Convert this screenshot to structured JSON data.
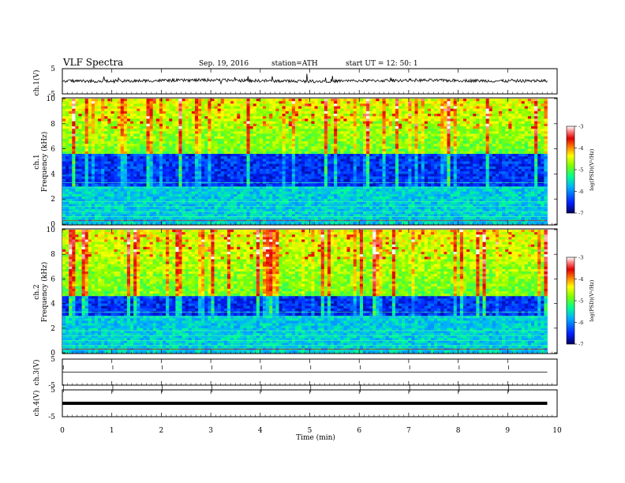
{
  "header": {
    "title": "VLF  Spectra",
    "date": "Sep. 19, 2016",
    "station": "station=ATH",
    "start": "start  UT  =    12: 50: 1"
  },
  "colorbar": {
    "label": "log(PSD)(V²/Hz)",
    "ticks": [
      "-3",
      "-4",
      "-5",
      "-6",
      "-7"
    ],
    "colors": [
      "#ffffff",
      "#ff7070",
      "#e00000",
      "#ff8000",
      "#ffff00",
      "#7fff00",
      "#00ff7f",
      "#00b0ff",
      "#0030ff",
      "#000060"
    ]
  },
  "chart_data": [
    {
      "type": "line",
      "panel": "ch1-waveform",
      "ylabel": "ch.1(V)",
      "ylim": [
        -5,
        5
      ],
      "ytick_labels": [
        "5",
        "-5"
      ],
      "description": "noisy waveform around ~0 V with spikes",
      "x": [
        0,
        1,
        2,
        3,
        4,
        5,
        6,
        7,
        8,
        9,
        9.8
      ],
      "values": [
        0.2,
        0.0,
        0.3,
        0.5,
        0.2,
        0.0,
        0.2,
        0.4,
        0.3,
        0.1,
        0.2
      ]
    },
    {
      "type": "heatmap",
      "panel": "ch1-spectrogram",
      "ylabel": "ch.1\nFrequency (kHz)",
      "ylim": [
        0,
        10
      ],
      "ytick_labels": [
        "0",
        "2",
        "4",
        "6",
        "8",
        "10"
      ],
      "color_scale": [
        -7,
        -3
      ],
      "bands_khz_quiet": [
        3,
        5.5
      ],
      "bands_khz_active": [
        6,
        10
      ]
    },
    {
      "type": "heatmap",
      "panel": "ch2-spectrogram",
      "ylabel": "ch.2\nFrequency (kHz)",
      "ylim": [
        0,
        10
      ],
      "ytick_labels": [
        "0",
        "2",
        "4",
        "6",
        "8",
        "10"
      ],
      "color_scale": [
        -7,
        -3
      ],
      "bands_khz_quiet": [
        3,
        4.5
      ],
      "bands_khz_active": [
        5,
        10
      ]
    },
    {
      "type": "line",
      "panel": "ch3-waveform",
      "ylabel": "ch.3(V)",
      "ylim": [
        -5,
        5
      ],
      "ytick_labels": [
        "5",
        "-5"
      ],
      "x": [
        0,
        9.8
      ],
      "values": [
        0,
        0
      ]
    },
    {
      "type": "line",
      "panel": "ch4-waveform",
      "ylabel": "ch.4(V)",
      "ylim": [
        -5,
        5
      ],
      "ytick_labels": [
        "5",
        "-5"
      ],
      "x": [
        0,
        9.8
      ],
      "values": [
        0,
        0
      ]
    }
  ],
  "xaxis": {
    "label": "Time  (min)",
    "ticks": [
      "0",
      "1",
      "2",
      "3",
      "4",
      "5",
      "6",
      "7",
      "8",
      "9",
      "10"
    ],
    "range": [
      0,
      10
    ],
    "data_end": 9.8
  }
}
